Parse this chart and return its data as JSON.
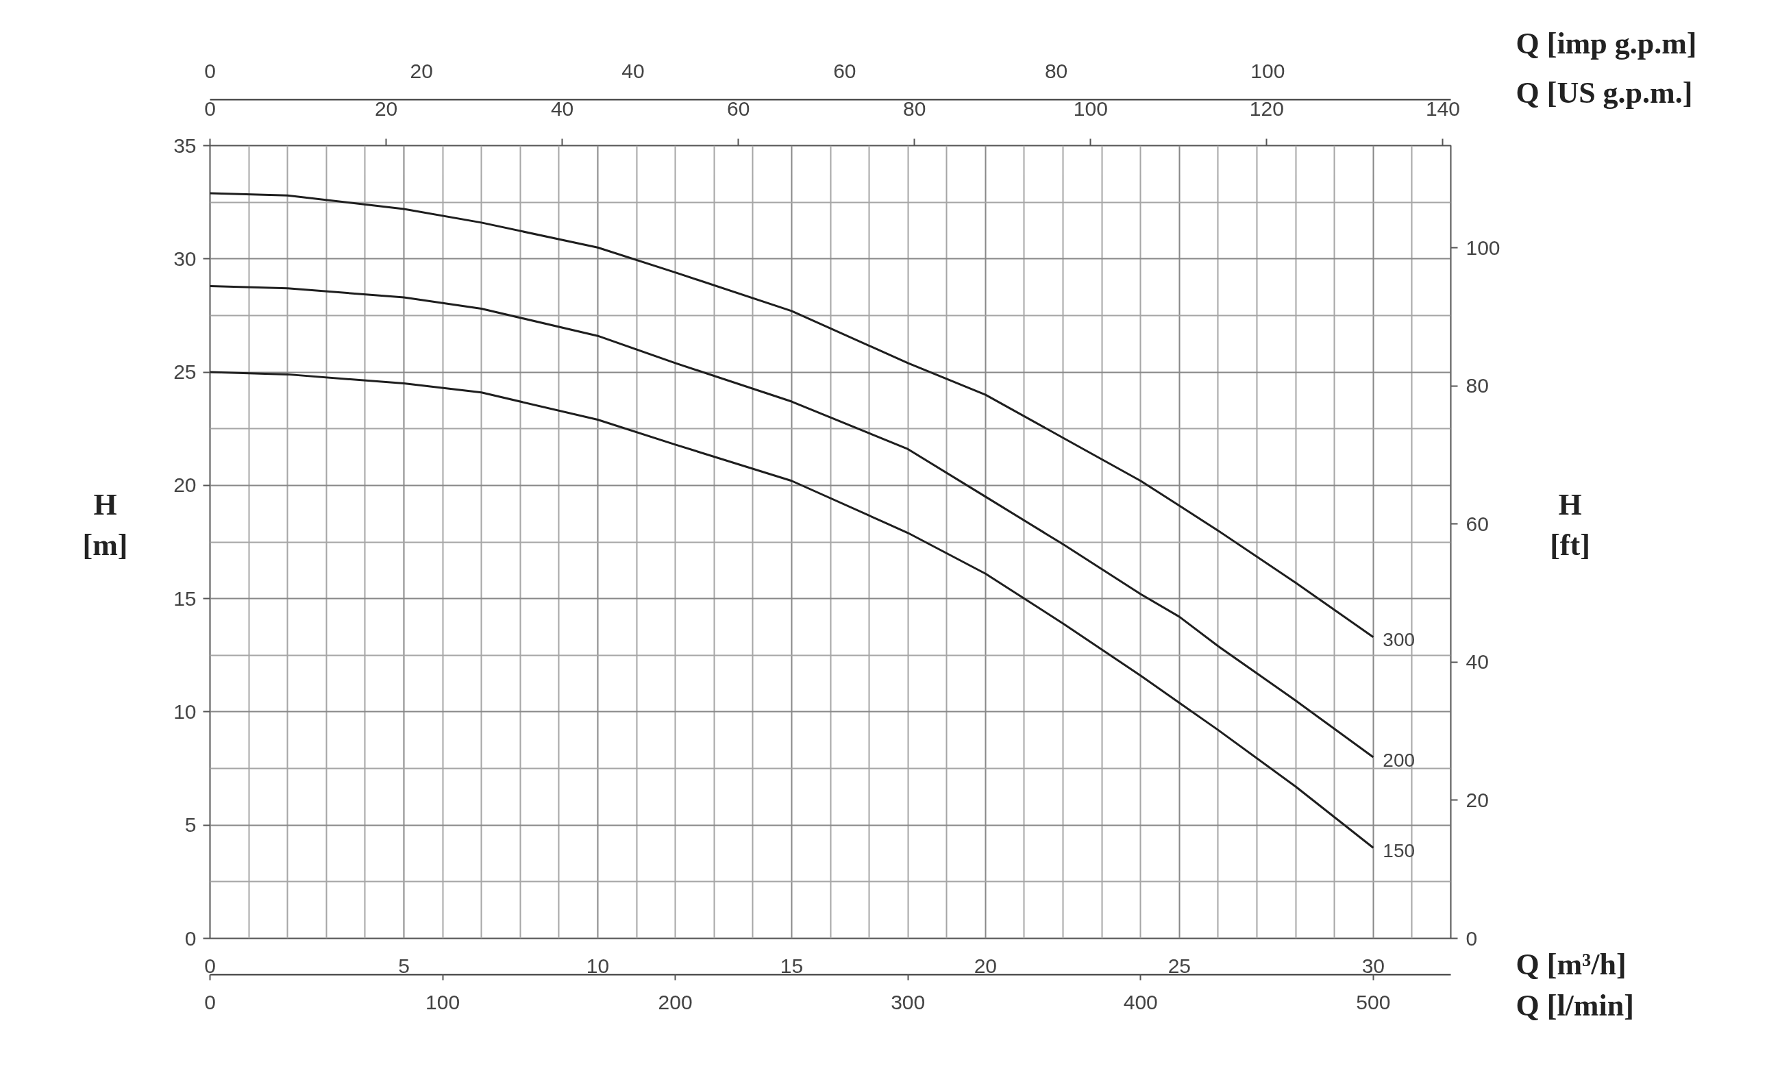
{
  "chart_data": {
    "type": "line",
    "xlabel": "Q [m³/h]\nQ [l/min]",
    "ylabel": "H [m]",
    "y2label": "H [ft]",
    "x2label": "Q [imp g.p.m]\nQ [US g.p.m.]",
    "x": [
      0,
      2,
      5,
      7,
      10,
      12,
      15,
      18,
      20,
      22,
      24,
      25,
      26,
      28,
      30
    ],
    "series": [
      {
        "name": "300",
        "color": "#1e1e1e",
        "values": [
          32.9,
          32.8,
          32.2,
          31.6,
          30.5,
          29.4,
          27.7,
          25.4,
          24.0,
          22.1,
          20.2,
          19.1,
          18.0,
          15.7,
          13.3
        ]
      },
      {
        "name": "200",
        "color": "#1e1e1e",
        "values": [
          28.8,
          28.7,
          28.3,
          27.8,
          26.6,
          25.4,
          23.7,
          21.6,
          19.5,
          17.4,
          15.2,
          14.2,
          12.9,
          10.5,
          8.0
        ]
      },
      {
        "name": "150",
        "color": "#1e1e1e",
        "values": [
          25.0,
          24.9,
          24.5,
          24.1,
          22.9,
          21.8,
          20.2,
          17.9,
          16.1,
          13.9,
          11.6,
          10.4,
          9.2,
          6.7,
          4.0
        ]
      }
    ],
    "xlim": [
      0,
      32
    ],
    "xticks": [
      0,
      5,
      10,
      15,
      20,
      25,
      30
    ],
    "ylim": [
      0,
      35
    ],
    "yticks": [
      0,
      5,
      10,
      15,
      20,
      25,
      30,
      35
    ],
    "y2lim": [
      0,
      114.8
    ],
    "y2ticks": [
      0,
      20,
      40,
      60,
      80,
      100
    ],
    "x2lim": [
      0,
      140.9
    ],
    "x2ticks": [
      0,
      20,
      40,
      60,
      80,
      100,
      120,
      140
    ],
    "annotations": [
      "0",
      "20",
      "40",
      "60",
      "80",
      "100",
      "0",
      "100",
      "200",
      "300",
      "400",
      "500"
    ],
    "grid": true,
    "line_style": "solid"
  }
}
